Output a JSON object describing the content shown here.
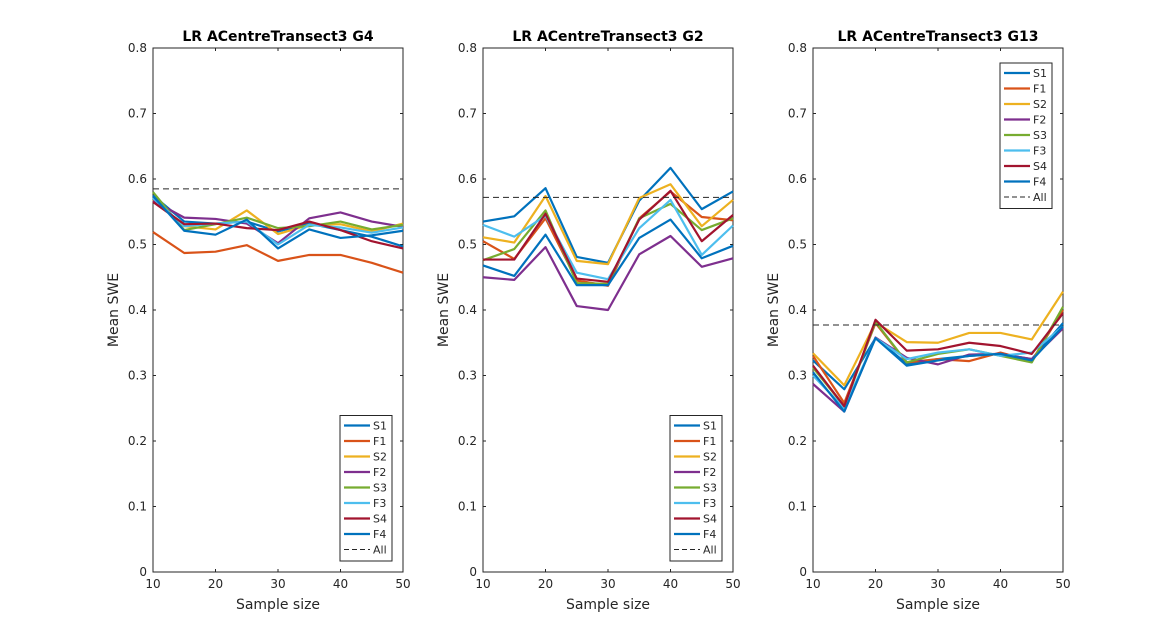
{
  "figure": {
    "background": "#ffffff",
    "axis_color": "#262626",
    "series_colors": {
      "S1": "#0072BD",
      "F1": "#D95319",
      "S2": "#EDB120",
      "F2": "#7E2F8E",
      "S3": "#77AC30",
      "F3": "#4DBEEE",
      "S4": "#A2142F",
      "F4": "#0072BD",
      "All": "#262626"
    }
  },
  "chart_data": [
    {
      "type": "line",
      "title": "LR ACentreTransect3 G4",
      "xlabel": "Sample size",
      "ylabel": "Mean SWE",
      "xlim": [
        10,
        50
      ],
      "ylim": [
        0,
        0.8
      ],
      "xticks": [
        "10",
        "20",
        "30",
        "40",
        "50"
      ],
      "yticks": [
        "0",
        "0.1",
        "0.2",
        "0.3",
        "0.4",
        "0.5",
        "0.6",
        "0.7",
        "0.8"
      ],
      "x": [
        10,
        15,
        20,
        25,
        30,
        35,
        40,
        45,
        50
      ],
      "legend_position": "bottom-right",
      "legend": [
        "S1",
        "F1",
        "S2",
        "F2",
        "S3",
        "F3",
        "S4",
        "F4",
        "All"
      ],
      "series": [
        {
          "name": "S1",
          "values": [
            0.575,
            0.535,
            0.532,
            0.535,
            0.52,
            0.532,
            0.522,
            0.512,
            0.497
          ],
          "style": "solid"
        },
        {
          "name": "F1",
          "values": [
            0.519,
            0.487,
            0.489,
            0.499,
            0.475,
            0.484,
            0.484,
            0.472,
            0.457
          ],
          "style": "solid"
        },
        {
          "name": "S2",
          "values": [
            0.568,
            0.528,
            0.523,
            0.552,
            0.516,
            0.53,
            0.531,
            0.52,
            0.532
          ],
          "style": "solid"
        },
        {
          "name": "F2",
          "values": [
            0.567,
            0.541,
            0.539,
            0.532,
            0.502,
            0.54,
            0.549,
            0.535,
            0.527
          ],
          "style": "solid"
        },
        {
          "name": "S3",
          "values": [
            0.58,
            0.522,
            0.531,
            0.541,
            0.525,
            0.528,
            0.535,
            0.523,
            0.53
          ],
          "style": "solid"
        },
        {
          "name": "F3",
          "values": [
            0.571,
            0.528,
            0.532,
            0.535,
            0.5,
            0.53,
            0.526,
            0.518,
            0.526
          ],
          "style": "solid"
        },
        {
          "name": "S4",
          "values": [
            0.565,
            0.531,
            0.532,
            0.525,
            0.522,
            0.535,
            0.522,
            0.505,
            0.494
          ],
          "style": "solid"
        },
        {
          "name": "F4",
          "values": [
            0.574,
            0.521,
            0.515,
            0.538,
            0.494,
            0.523,
            0.51,
            0.514,
            0.521
          ],
          "style": "solid"
        },
        {
          "name": "All",
          "values": [
            0.585,
            0.585,
            0.585,
            0.585,
            0.585,
            0.585,
            0.585,
            0.585,
            0.585
          ],
          "style": "dashed"
        }
      ]
    },
    {
      "type": "line",
      "title": "LR ACentreTransect3 G2",
      "xlabel": "Sample size",
      "ylabel": "Mean SWE",
      "xlim": [
        10,
        50
      ],
      "ylim": [
        0,
        0.8
      ],
      "xticks": [
        "10",
        "20",
        "30",
        "40",
        "50"
      ],
      "yticks": [
        "0",
        "0.1",
        "0.2",
        "0.3",
        "0.4",
        "0.5",
        "0.6",
        "0.7",
        "0.8"
      ],
      "x": [
        10,
        15,
        20,
        25,
        30,
        35,
        40,
        45,
        50
      ],
      "legend_position": "bottom-right",
      "legend": [
        "S1",
        "F1",
        "S2",
        "F2",
        "S3",
        "F3",
        "S4",
        "F4",
        "All"
      ],
      "series": [
        {
          "name": "S1",
          "values": [
            0.535,
            0.543,
            0.586,
            0.481,
            0.472,
            0.567,
            0.617,
            0.554,
            0.581
          ],
          "style": "solid"
        },
        {
          "name": "F1",
          "values": [
            0.505,
            0.478,
            0.54,
            0.445,
            0.437,
            0.54,
            0.581,
            0.542,
            0.537
          ],
          "style": "solid"
        },
        {
          "name": "S2",
          "values": [
            0.511,
            0.503,
            0.574,
            0.475,
            0.47,
            0.571,
            0.592,
            0.528,
            0.568
          ],
          "style": "solid"
        },
        {
          "name": "F2",
          "values": [
            0.45,
            0.446,
            0.496,
            0.406,
            0.4,
            0.485,
            0.513,
            0.466,
            0.479
          ],
          "style": "solid"
        },
        {
          "name": "S3",
          "values": [
            0.476,
            0.493,
            0.552,
            0.441,
            0.44,
            0.54,
            0.562,
            0.522,
            0.54
          ],
          "style": "solid"
        },
        {
          "name": "F3",
          "values": [
            0.53,
            0.512,
            0.544,
            0.457,
            0.447,
            0.525,
            0.568,
            0.484,
            0.529
          ],
          "style": "solid"
        },
        {
          "name": "S4",
          "values": [
            0.477,
            0.477,
            0.547,
            0.448,
            0.443,
            0.538,
            0.582,
            0.505,
            0.545
          ],
          "style": "solid"
        },
        {
          "name": "F4",
          "values": [
            0.468,
            0.452,
            0.515,
            0.438,
            0.438,
            0.51,
            0.538,
            0.479,
            0.498
          ],
          "style": "solid"
        },
        {
          "name": "All",
          "values": [
            0.572,
            0.572,
            0.572,
            0.572,
            0.572,
            0.572,
            0.572,
            0.572,
            0.572
          ],
          "style": "dashed"
        }
      ]
    },
    {
      "type": "line",
      "title": "LR ACentreTransect3 G13",
      "xlabel": "Sample size",
      "ylabel": "Mean SWE",
      "xlim": [
        10,
        50
      ],
      "ylim": [
        0,
        0.8
      ],
      "xticks": [
        "10",
        "20",
        "30",
        "40",
        "50"
      ],
      "yticks": [
        "0",
        "0.1",
        "0.2",
        "0.3",
        "0.4",
        "0.5",
        "0.6",
        "0.7",
        "0.8"
      ],
      "x": [
        10,
        15,
        20,
        25,
        30,
        35,
        40,
        45,
        50
      ],
      "legend_position": "top-right",
      "legend": [
        "S1",
        "F1",
        "S2",
        "F2",
        "S3",
        "F3",
        "S4",
        "F4",
        "All"
      ],
      "series": [
        {
          "name": "S1",
          "values": [
            0.323,
            0.279,
            0.357,
            0.318,
            0.325,
            0.33,
            0.333,
            0.325,
            0.38
          ],
          "style": "solid"
        },
        {
          "name": "F1",
          "values": [
            0.33,
            0.258,
            0.38,
            0.32,
            0.325,
            0.322,
            0.335,
            0.322,
            0.4
          ],
          "style": "solid"
        },
        {
          "name": "S2",
          "values": [
            0.334,
            0.285,
            0.381,
            0.351,
            0.35,
            0.365,
            0.365,
            0.355,
            0.428
          ],
          "style": "solid"
        },
        {
          "name": "F2",
          "values": [
            0.287,
            0.245,
            0.358,
            0.327,
            0.317,
            0.332,
            0.333,
            0.325,
            0.372
          ],
          "style": "solid"
        },
        {
          "name": "S3",
          "values": [
            0.312,
            0.253,
            0.382,
            0.32,
            0.333,
            0.34,
            0.33,
            0.32,
            0.405
          ],
          "style": "solid"
        },
        {
          "name": "F3",
          "values": [
            0.3,
            0.25,
            0.357,
            0.325,
            0.335,
            0.34,
            0.33,
            0.335,
            0.375
          ],
          "style": "solid"
        },
        {
          "name": "S4",
          "values": [
            0.315,
            0.253,
            0.385,
            0.338,
            0.34,
            0.35,
            0.345,
            0.333,
            0.395
          ],
          "style": "solid"
        },
        {
          "name": "F4",
          "values": [
            0.305,
            0.245,
            0.357,
            0.315,
            0.323,
            0.33,
            0.333,
            0.323,
            0.375
          ],
          "style": "solid"
        },
        {
          "name": "All",
          "values": [
            0.377,
            0.377,
            0.377,
            0.377,
            0.377,
            0.377,
            0.377,
            0.377,
            0.377
          ],
          "style": "dashed"
        }
      ]
    }
  ]
}
